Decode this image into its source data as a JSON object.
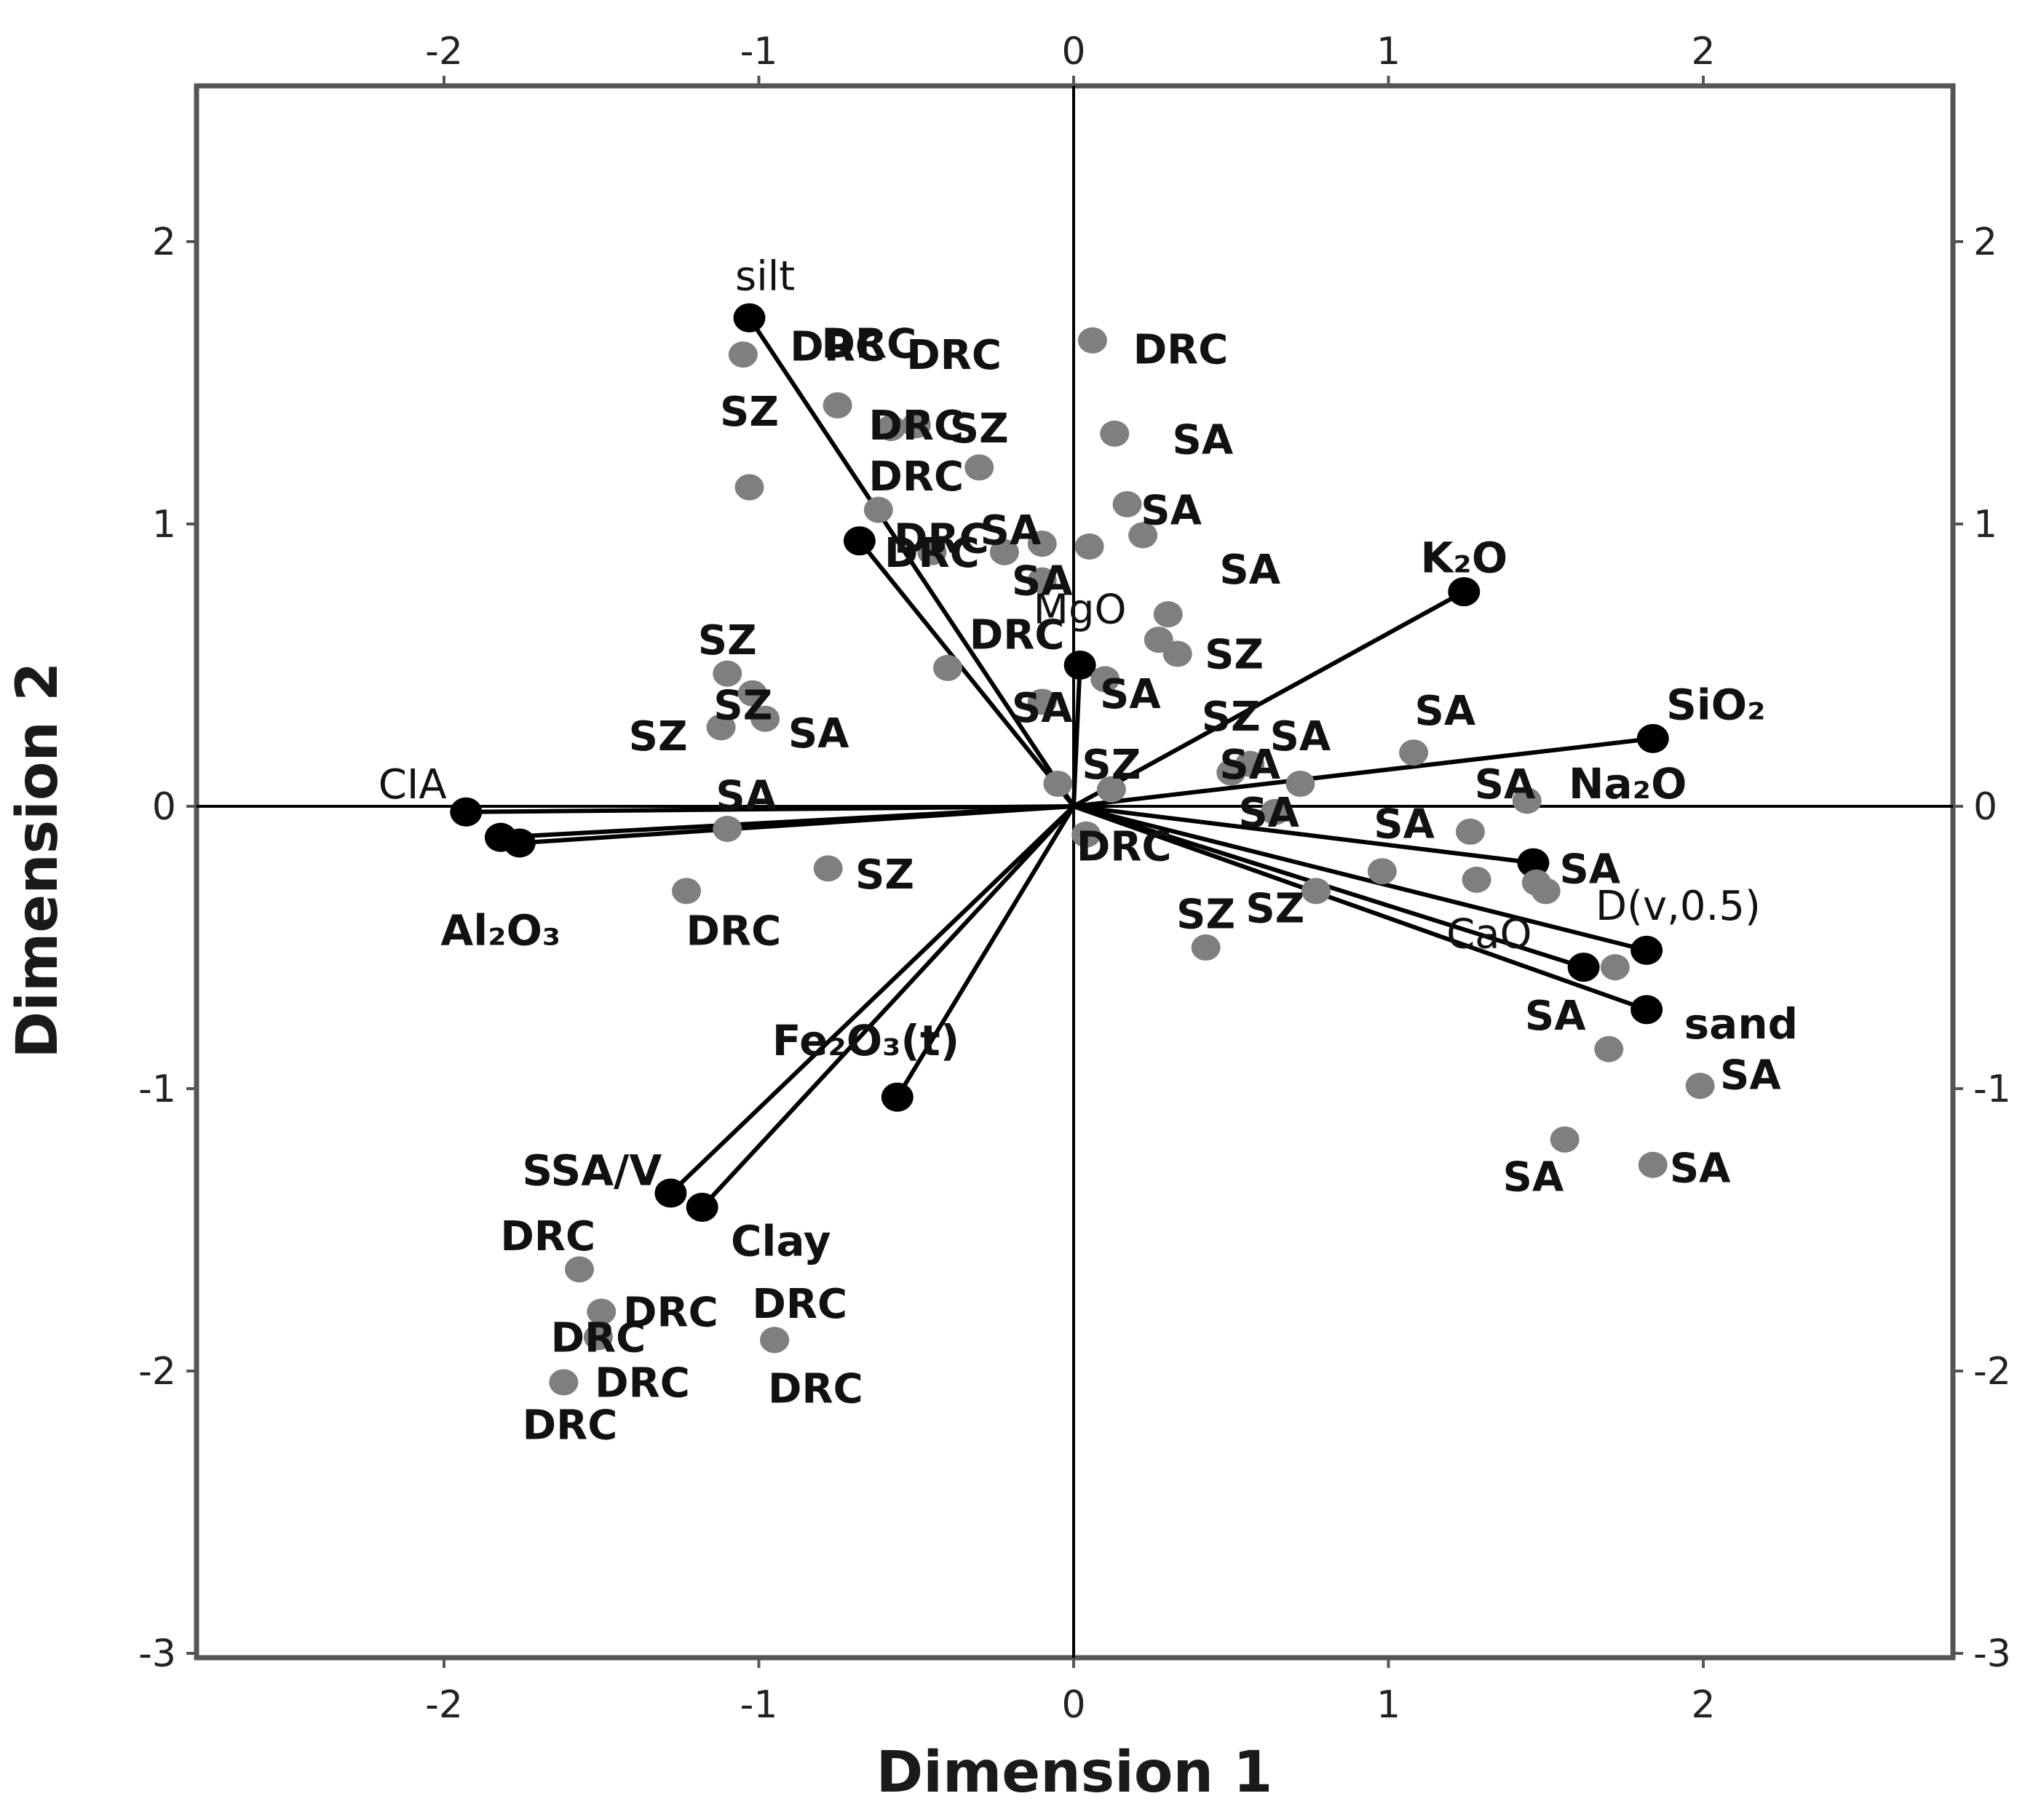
{
  "chart_data": {
    "type": "scatter",
    "subtype": "biplot",
    "xlabel": "Dimension 1",
    "ylabel": "Dimension 2",
    "xlim": [
      -2.8,
      2.8
    ],
    "ylim": [
      -3,
      2.6
    ],
    "xticks": [
      -2,
      -1,
      0,
      1,
      2
    ],
    "yticks": [
      -3,
      -2,
      -1,
      0,
      1,
      2
    ],
    "tick_labels_x": [
      "-2",
      "-1",
      "0",
      "1",
      "2"
    ],
    "tick_labels_y": [
      "-3",
      "-2",
      "-1",
      "0",
      "1",
      "2"
    ],
    "grid": false,
    "colors": {
      "observation": "#7f7f7f",
      "vector": "#000000",
      "frame": "#555555"
    },
    "vectors": [
      {
        "label": "silt",
        "x": -1.03,
        "y": 1.73,
        "bold": false,
        "label_dx": 0.05,
        "label_dy": 0.15
      },
      {
        "label": "",
        "x": -0.68,
        "y": 0.94
      },
      {
        "label": "MgO",
        "x": 0.02,
        "y": 0.5,
        "bold": false,
        "label_dx": 0.0,
        "label_dy": 0.2
      },
      {
        "label": "K₂O",
        "x": 1.24,
        "y": 0.76,
        "bold": true,
        "label_dx": 0.0,
        "label_dy": 0.12
      },
      {
        "label": "SiO₂",
        "x": 1.84,
        "y": 0.24,
        "bold": true,
        "label_dx": 0.2,
        "label_dy": 0.12
      },
      {
        "label": "Na₂O",
        "x": 1.46,
        "y": -0.2,
        "bold": true,
        "label_dx": 0.3,
        "label_dy": 0.28
      },
      {
        "label": "D(v,0.5)",
        "x": 1.82,
        "y": -0.51,
        "bold": false,
        "label_dx": 0.1,
        "label_dy": 0.16
      },
      {
        "label": "CaO",
        "x": 1.62,
        "y": -0.57,
        "bold": false,
        "label_dx": -0.3,
        "label_dy": 0.12
      },
      {
        "label": "sand",
        "x": 1.82,
        "y": -0.72,
        "bold": true,
        "label_dx": 0.3,
        "label_dy": -0.05
      },
      {
        "label": "CIA",
        "x": -1.93,
        "y": -0.02,
        "bold": false,
        "label_dx": -0.17,
        "label_dy": 0.1
      },
      {
        "label": "Al₂O₃",
        "x": -1.82,
        "y": -0.11,
        "bold": true,
        "label_dx": 0.0,
        "label_dy": -0.33
      },
      {
        "label": "",
        "x": -1.76,
        "y": -0.13
      },
      {
        "label": "Fe₂O₃(t)",
        "x": -0.56,
        "y": -1.03,
        "bold": true,
        "label_dx": -0.1,
        "label_dy": 0.2
      },
      {
        "label": "SSA/V",
        "x": -1.28,
        "y": -1.37,
        "bold": true,
        "label_dx": -0.25,
        "label_dy": 0.08
      },
      {
        "label": "Clay",
        "x": -1.18,
        "y": -1.42,
        "bold": true,
        "label_dx": 0.25,
        "label_dy": -0.12
      }
    ],
    "observations": [
      {
        "label": "DRC",
        "x": -1.05,
        "y": 1.6,
        "label_dx": 0.3,
        "label_dy": 0.03
      },
      {
        "label": "DRC",
        "x": -0.75,
        "y": 1.42,
        "label_dx": 0.1,
        "label_dy": 0.22
      },
      {
        "label": "DRC",
        "x": -0.58,
        "y": 1.34,
        "label_dx": 0.2,
        "label_dy": 0.26
      },
      {
        "label": "DRC",
        "x": -0.5,
        "y": 1.35,
        "label_dx": 0.0,
        "label_dy": 0.0
      },
      {
        "label": "SZ",
        "x": -1.03,
        "y": 1.13,
        "label_dx": 0.0,
        "label_dy": 0.27
      },
      {
        "label": "SZ",
        "x": -0.3,
        "y": 1.2,
        "label_dx": 0.0,
        "label_dy": 0.14
      },
      {
        "label": "DRC",
        "x": -0.62,
        "y": 1.05,
        "label_dx": 0.12,
        "label_dy": 0.12
      },
      {
        "label": "DRC",
        "x": -0.45,
        "y": 0.9,
        "label_dx": 0.0,
        "label_dy": 0.0
      },
      {
        "label": "DRC",
        "x": 0.06,
        "y": 1.65,
        "label_dx": 0.28,
        "label_dy": -0.03
      },
      {
        "label": "SA",
        "x": 0.13,
        "y": 1.32,
        "label_dx": 0.28,
        "label_dy": -0.02
      },
      {
        "label": "SA",
        "x": 0.17,
        "y": 1.07,
        "label_dx": 0.14,
        "label_dy": -0.02
      },
      {
        "label": "SA",
        "x": 0.22,
        "y": 0.96,
        "label_dx": 0.34,
        "label_dy": -0.12
      },
      {
        "label": "SA",
        "x": -0.1,
        "y": 0.93,
        "label_dx": -0.1,
        "label_dy": 0.05
      },
      {
        "label": "DRC",
        "x": -0.22,
        "y": 0.9,
        "label_dx": -0.2,
        "label_dy": 0.05
      },
      {
        "label": "",
        "x": 0.05,
        "y": 0.92,
        "label_dx": 0,
        "label_dy": 0
      },
      {
        "label": "SA",
        "x": -0.1,
        "y": 0.8,
        "label_dx": 0.0,
        "label_dy": 0.0
      },
      {
        "label": "",
        "x": 0.3,
        "y": 0.68,
        "label_dx": 0,
        "label_dy": 0
      },
      {
        "label": "",
        "x": 0.27,
        "y": 0.59,
        "label_dx": 0,
        "label_dy": 0
      },
      {
        "label": "SZ",
        "x": 0.33,
        "y": 0.54,
        "label_dx": 0.18,
        "label_dy": 0.0
      },
      {
        "label": "DRC",
        "x": -0.4,
        "y": 0.49,
        "label_dx": 0.22,
        "label_dy": 0.12
      },
      {
        "label": "SA",
        "x": 0.1,
        "y": 0.45,
        "label_dx": 0.08,
        "label_dy": -0.05
      },
      {
        "label": "SA",
        "x": -0.1,
        "y": 0.37,
        "label_dx": 0.0,
        "label_dy": -0.02
      },
      {
        "label": "SZ",
        "x": -1.1,
        "y": 0.47,
        "label_dx": 0.0,
        "label_dy": 0.12
      },
      {
        "label": "SZ",
        "x": -1.02,
        "y": 0.4,
        "label_dx": -0.03,
        "label_dy": -0.04
      },
      {
        "label": "SA",
        "x": -0.98,
        "y": 0.31,
        "label_dx": 0.17,
        "label_dy": -0.05
      },
      {
        "label": "SZ",
        "x": -1.12,
        "y": 0.28,
        "label_dx": -0.2,
        "label_dy": -0.03
      },
      {
        "label": "SZ",
        "x": 0.5,
        "y": 0.12,
        "label_dx": 0.0,
        "label_dy": 0.2
      },
      {
        "label": "SZ",
        "x": 0.12,
        "y": 0.06,
        "label_dx": 0.0,
        "label_dy": 0.09
      },
      {
        "label": "SA",
        "x": 0.56,
        "y": 0.15,
        "label_dx": 0.0,
        "label_dy": 0.0
      },
      {
        "label": "SA",
        "x": 0.72,
        "y": 0.08,
        "label_dx": -0.0,
        "label_dy": 0.17
      },
      {
        "label": "SA",
        "x": 1.08,
        "y": 0.19,
        "label_dx": 0.1,
        "label_dy": 0.15
      },
      {
        "label": "SA",
        "x": -1.1,
        "y": -0.08,
        "label_dx": 0.06,
        "label_dy": 0.12
      },
      {
        "label": "",
        "x": -0.05,
        "y": 0.08,
        "label_dx": 0,
        "label_dy": 0
      },
      {
        "label": "SA",
        "x": 0.64,
        "y": -0.02,
        "label_dx": -0.02,
        "label_dy": 0.0
      },
      {
        "label": "SA",
        "x": 1.44,
        "y": 0.02,
        "label_dx": -0.07,
        "label_dy": 0.06
      },
      {
        "label": "SA",
        "x": 1.26,
        "y": -0.09,
        "label_dx": -0.21,
        "label_dy": 0.03
      },
      {
        "label": "SA",
        "x": 1.47,
        "y": -0.27,
        "label_dx": 0.17,
        "label_dy": 0.05
      },
      {
        "label": "",
        "x": 0.98,
        "y": -0.23,
        "label_dx": 0,
        "label_dy": 0
      },
      {
        "label": "",
        "x": 1.28,
        "y": -0.26,
        "label_dx": 0,
        "label_dy": 0
      },
      {
        "label": "",
        "x": 1.5,
        "y": -0.3,
        "label_dx": 0,
        "label_dy": 0
      },
      {
        "label": "",
        "x": 1.72,
        "y": -0.57,
        "label_dx": 0,
        "label_dy": 0
      },
      {
        "label": "SZ",
        "x": 0.77,
        "y": -0.3,
        "label_dx": -0.13,
        "label_dy": -0.06
      },
      {
        "label": "SZ",
        "x": 0.42,
        "y": -0.5,
        "label_dx": 0.0,
        "label_dy": 0.12
      },
      {
        "label": "DRC",
        "x": 0.04,
        "y": -0.1,
        "label_dx": 0.12,
        "label_dy": -0.04
      },
      {
        "label": "SZ",
        "x": -0.78,
        "y": -0.22,
        "label_dx": 0.18,
        "label_dy": -0.02
      },
      {
        "label": "DRC",
        "x": -1.23,
        "y": -0.3,
        "label_dx": 0.15,
        "label_dy": -0.14
      },
      {
        "label": "SA",
        "x": 1.7,
        "y": -0.86,
        "label_dx": -0.17,
        "label_dy": 0.12
      },
      {
        "label": "SA",
        "x": 1.99,
        "y": -0.99,
        "label_dx": 0.16,
        "label_dy": 0.04
      },
      {
        "label": "SA",
        "x": 1.56,
        "y": -1.18,
        "label_dx": -0.1,
        "label_dy": -0.13
      },
      {
        "label": "SA",
        "x": 1.84,
        "y": -1.27,
        "label_dx": 0.15,
        "label_dy": -0.01
      },
      {
        "label": "DRC",
        "x": -1.57,
        "y": -1.64,
        "label_dx": -0.1,
        "label_dy": 0.12
      },
      {
        "label": "DRC",
        "x": -1.5,
        "y": -1.79,
        "label_dx": 0.22,
        "label_dy": 0.0
      },
      {
        "label": "DRC",
        "x": -1.51,
        "y": -1.88,
        "label_dx": 0.0,
        "label_dy": 0.0
      },
      {
        "label": "DRC",
        "x": -0.95,
        "y": -1.89,
        "label_dx": 0.08,
        "label_dy": 0.13
      },
      {
        "label": "DRC",
        "x": -1.62,
        "y": -2.04,
        "label_dx": 0.25,
        "label_dy": 0.0
      },
      {
        "label": "DRC",
        "x": -1.62,
        "y": -2.04,
        "label_dx": 0.02,
        "label_dy": -0.15
      },
      {
        "label": "DRC",
        "x": -0.95,
        "y": -1.89,
        "label_dx": 0.13,
        "label_dy": -0.17
      }
    ]
  }
}
